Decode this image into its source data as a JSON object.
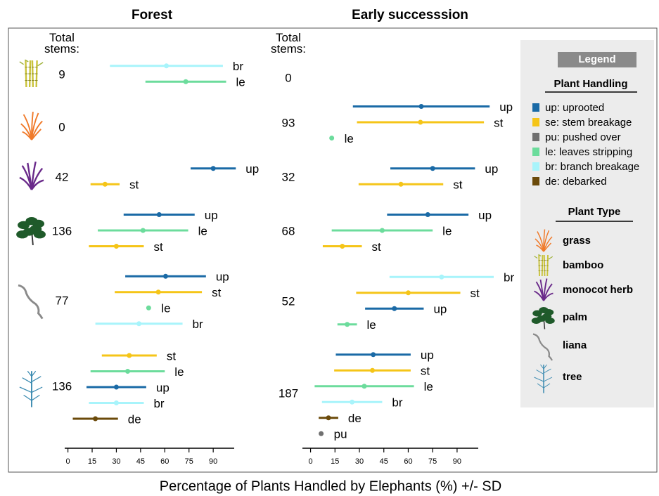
{
  "x_label": "Percentage of Plants Handled by Elephants (%) +/- SD",
  "legend": {
    "title": "Legend",
    "handling_title": "Plant Handling",
    "handling": [
      {
        "label": "up: uprooted",
        "color": "#1a6aa6"
      },
      {
        "label": "se: stem breakage",
        "color": "#f5c518"
      },
      {
        "label": "pu: pushed over",
        "color": "#707070"
      },
      {
        "label": "le: leaves stripping",
        "color": "#6cdc9c"
      },
      {
        "label": "br: branch breakage",
        "color": "#a8f4fb"
      },
      {
        "label": "de: debarked",
        "color": "#6b4a0a"
      }
    ],
    "type_title": "Plant Type",
    "types": [
      "grass",
      "bamboo",
      "monocot herb",
      "palm",
      "liana",
      "tree"
    ]
  },
  "chart_data": [
    {
      "type": "dotinterval",
      "title": "Forest",
      "stems_label": "Total stems:",
      "xlim": [
        -2,
        103
      ],
      "xticks": [
        0,
        15,
        30,
        45,
        60,
        75,
        90
      ],
      "groups": [
        {
          "plant": "bamboo",
          "total": 9,
          "series": [
            {
              "label": "br",
              "color": "#a8f4fb",
              "mean": 61,
              "sd": 35
            },
            {
              "label": "le",
              "color": "#6cdc9c",
              "mean": 73,
              "sd": 25
            }
          ]
        },
        {
          "plant": "grass",
          "total": 0,
          "series": []
        },
        {
          "plant": "monocot herb",
          "total": 42,
          "series": [
            {
              "label": "up",
              "color": "#1a6aa6",
              "mean": 90,
              "sd": 14
            },
            {
              "label": "st",
              "color": "#f5c518",
              "mean": 23,
              "sd": 9
            }
          ]
        },
        {
          "plant": "palm",
          "total": 136,
          "series": [
            {
              "label": "up",
              "color": "#1a6aa6",
              "mean": 56.5,
              "sd": 22
            },
            {
              "label": "le",
              "color": "#6cdc9c",
              "mean": 46.5,
              "sd": 28
            },
            {
              "label": "st",
              "color": "#f5c518",
              "mean": 30,
              "sd": 17
            }
          ]
        },
        {
          "plant": "liana",
          "total": 77,
          "series": [
            {
              "label": "up",
              "color": "#1a6aa6",
              "mean": 60.5,
              "sd": 25
            },
            {
              "label": "st",
              "color": "#f5c518",
              "mean": 56,
              "sd": 27
            },
            {
              "label": "le",
              "color": "#6cdc9c",
              "mean": 50,
              "sd": 0
            },
            {
              "label": "br",
              "color": "#a8f4fb",
              "mean": 44,
              "sd": 27
            }
          ]
        },
        {
          "plant": "tree",
          "total": 136,
          "series": [
            {
              "label": "st",
              "color": "#f5c518",
              "mean": 38,
              "sd": 17
            },
            {
              "label": "le",
              "color": "#6cdc9c",
              "mean": 37,
              "sd": 23
            },
            {
              "label": "up",
              "color": "#1a6aa6",
              "mean": 30,
              "sd": 18.5
            },
            {
              "label": "br",
              "color": "#a8f4fb",
              "mean": 30,
              "sd": 17
            },
            {
              "label": "de",
              "color": "#6b4a0a",
              "mean": 17,
              "sd": 14
            }
          ]
        }
      ]
    },
    {
      "type": "dotinterval",
      "title": "Early successsion",
      "stems_label": "Total stems:",
      "xlim": [
        -5,
        103
      ],
      "xticks": [
        0,
        15,
        30,
        45,
        60,
        75,
        90
      ],
      "groups": [
        {
          "plant": "bamboo",
          "total": 0,
          "series": []
        },
        {
          "plant": "grass",
          "total": 93,
          "series": [
            {
              "label": "up",
              "color": "#1a6aa6",
              "mean": 68,
              "sd": 42
            },
            {
              "label": "st",
              "color": "#f5c518",
              "mean": 67.5,
              "sd": 39
            },
            {
              "label": "le",
              "color": "#6cdc9c",
              "mean": 13,
              "sd": 0
            }
          ]
        },
        {
          "plant": "monocot herb",
          "total": 32,
          "series": [
            {
              "label": "up",
              "color": "#1a6aa6",
              "mean": 75,
              "sd": 26
            },
            {
              "label": "st",
              "color": "#f5c518",
              "mean": 55.5,
              "sd": 26
            }
          ]
        },
        {
          "plant": "palm",
          "total": 68,
          "series": [
            {
              "label": "up",
              "color": "#1a6aa6",
              "mean": 72,
              "sd": 25
            },
            {
              "label": "le",
              "color": "#6cdc9c",
              "mean": 44,
              "sd": 31
            },
            {
              "label": "st",
              "color": "#f5c518",
              "mean": 19.5,
              "sd": 12
            }
          ]
        },
        {
          "plant": "liana",
          "total": 52,
          "series": [
            {
              "label": "br",
              "color": "#a8f4fb",
              "mean": 80.5,
              "sd": 32
            },
            {
              "label": "st",
              "color": "#f5c518",
              "mean": 60,
              "sd": 32
            },
            {
              "label": "up",
              "color": "#1a6aa6",
              "mean": 51.5,
              "sd": 18
            },
            {
              "label": "le",
              "color": "#6cdc9c",
              "mean": 22.5,
              "sd": 6
            }
          ]
        },
        {
          "plant": "tree",
          "total": 187,
          "series": [
            {
              "label": "up",
              "color": "#1a6aa6",
              "mean": 38.5,
              "sd": 23
            },
            {
              "label": "st",
              "color": "#f5c518",
              "mean": 38,
              "sd": 23.5
            },
            {
              "label": "le",
              "color": "#6cdc9c",
              "mean": 33,
              "sd": 30.5
            },
            {
              "label": "br",
              "color": "#a8f4fb",
              "mean": 25.5,
              "sd": 18.5
            },
            {
              "label": "de",
              "color": "#6b4a0a",
              "mean": 11,
              "sd": 6
            },
            {
              "label": "pu",
              "color": "#707070",
              "mean": 6.5,
              "sd": 0
            }
          ]
        }
      ]
    }
  ]
}
